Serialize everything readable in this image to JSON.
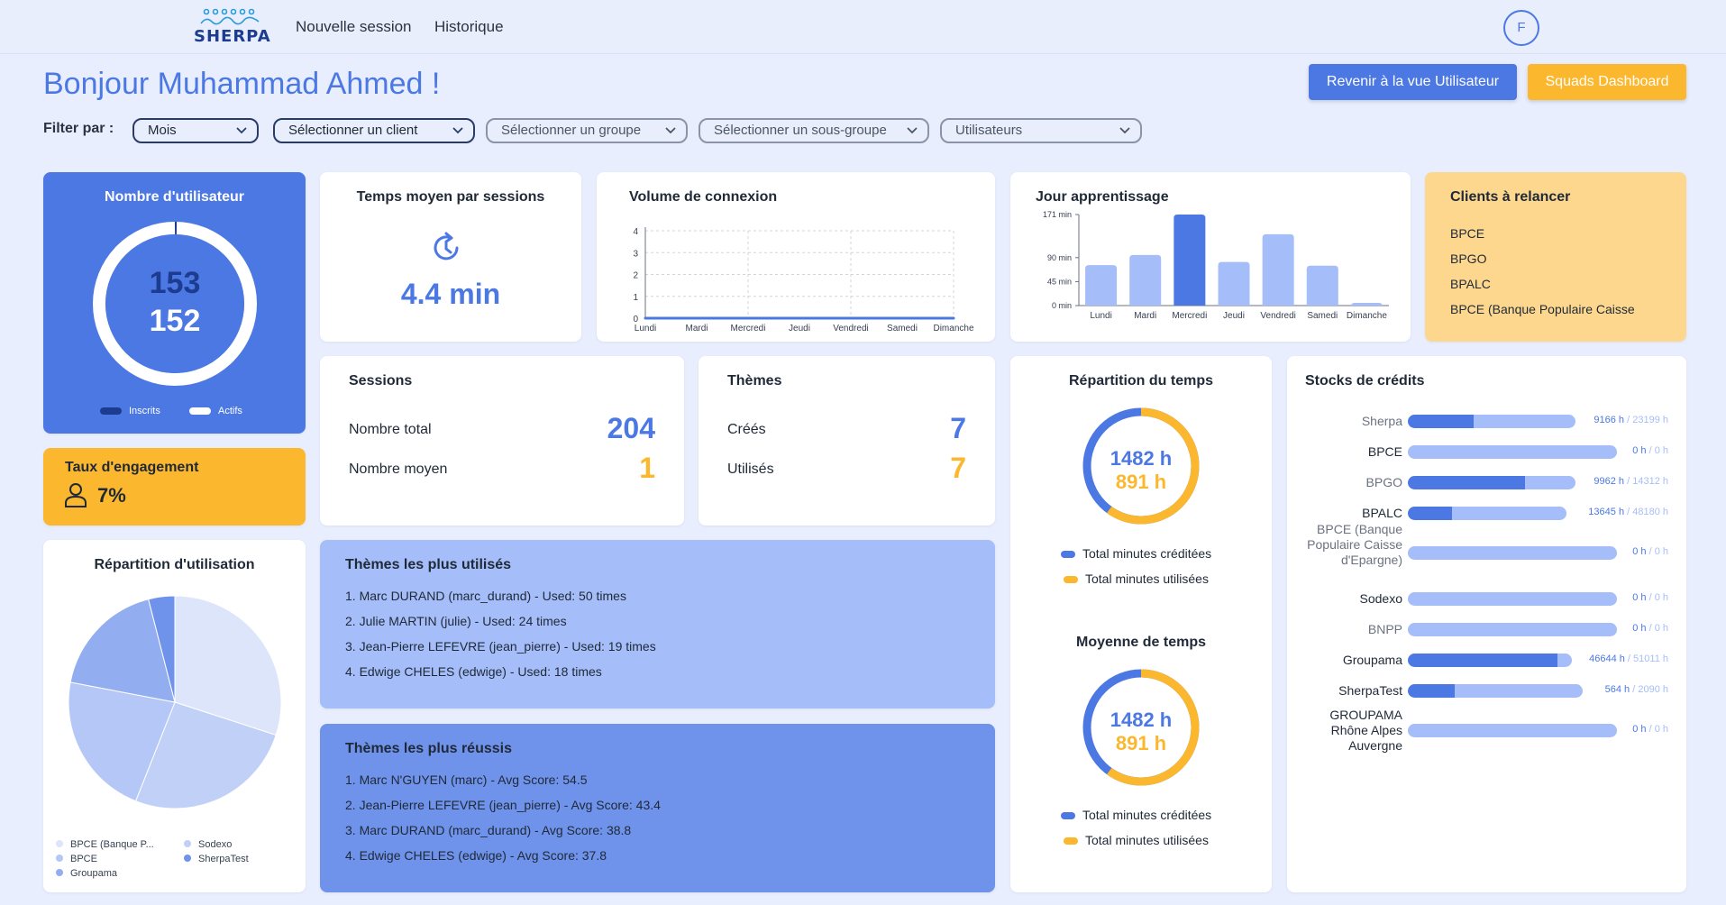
{
  "app": {
    "logo_text": "SHERPA"
  },
  "nav": {
    "new_session": "Nouvelle session",
    "history": "Historique",
    "avatar_initial": "F"
  },
  "header": {
    "greeting": "Bonjour Muhammad Ahmed !",
    "btn_user_view": "Revenir à la vue Utilisateur",
    "btn_squads": "Squads Dashboard"
  },
  "filters": {
    "label": "Filter par :",
    "month": "Mois",
    "client": "Sélectionner un client",
    "group": "Sélectionner un groupe",
    "subgroup": "Sélectionner un sous-groupe",
    "users": "Utilisateurs"
  },
  "users_card": {
    "title": "Nombre d'utilisateur",
    "registered": "153",
    "active": "152",
    "legend_registered": "Inscrits",
    "legend_active": "Actifs"
  },
  "engagement": {
    "title": "Taux d'engagement",
    "value": "7%"
  },
  "avg_time": {
    "title": "Temps moyen par sessions",
    "value": "4.4 min"
  },
  "sessions": {
    "title": "Sessions",
    "total_label": "Nombre total",
    "total": "204",
    "avg_label": "Nombre moyen",
    "avg": "1"
  },
  "themes": {
    "title": "Thèmes",
    "created_label": "Créés",
    "created": "7",
    "used_label": "Utilisés",
    "used": "7"
  },
  "connection_volume": {
    "title": "Volume de connexion",
    "chart_data": {
      "type": "line",
      "categories": [
        "Lundi",
        "Mardi",
        "Mercredi",
        "Jeudi",
        "Vendredi",
        "Samedi",
        "Dimanche"
      ],
      "values": [
        0,
        0,
        0,
        0,
        0,
        0,
        0
      ],
      "yticks": [
        "0",
        "1",
        "2",
        "3",
        "4"
      ],
      "ylim": [
        0,
        4
      ]
    }
  },
  "learning_day": {
    "title": "Jour apprentissage",
    "chart_data": {
      "type": "bar",
      "categories": [
        "Lundi",
        "Mardi",
        "Mercredi",
        "Jeudi",
        "Vendredi",
        "Samedi",
        "Dimanche"
      ],
      "values": [
        76,
        95,
        171,
        82,
        134,
        75,
        5
      ],
      "highlight": "Mercredi",
      "yticks": [
        "0 min",
        "45 min",
        "90 min",
        "171 min"
      ],
      "ytick_values": [
        0,
        45,
        90,
        171
      ],
      "ylim": [
        0,
        171
      ]
    }
  },
  "clients_to_follow": {
    "title": "Clients à relancer",
    "items": [
      "BPCE",
      "BPGO",
      "BPALC",
      "BPCE (Banque Populaire Caisse"
    ]
  },
  "usage_split": {
    "title": "Répartition d'utilisation",
    "chart_data": {
      "type": "pie",
      "slices": [
        {
          "label": "BPCE (Banque P...",
          "value": 30,
          "color": "#dde5fb"
        },
        {
          "label": "Sodexo",
          "value": 26,
          "color": "#c1d0f7"
        },
        {
          "label": "BPCE",
          "value": 22,
          "color": "#b5c7f6"
        },
        {
          "label": "Groupama",
          "value": 18,
          "color": "#93aef0"
        },
        {
          "label": "SherpaTest",
          "value": 4,
          "color": "#6f92ea"
        }
      ],
      "legend": [
        "BPCE (Banque P...",
        "Sodexo",
        "BPCE",
        "SherpaTest",
        "Groupama"
      ]
    }
  },
  "top_used": {
    "title": "Thèmes les plus utilisés",
    "items": [
      "1.  Marc DURAND (marc_durand) - Used: 50 times",
      "2.  Julie MARTIN (julie) - Used: 24 times",
      "3.  Jean-Pierre LEFEVRE (jean_pierre) - Used: 19 times",
      "4.  Edwige CHELES (edwige) - Used: 18 times"
    ]
  },
  "top_success": {
    "title": "Thèmes les plus réussis",
    "items": [
      "1.  Marc N'GUYEN (marc) - Avg Score: 54.5",
      "2.  Jean-Pierre LEFEVRE (jean_pierre) - Avg Score: 43.4",
      "3.  Marc DURAND (marc_durand) - Avg Score: 38.8",
      "4.  Edwige CHELES (edwige) - Avg Score: 37.8"
    ]
  },
  "time_split": {
    "title": "Répartition du temps",
    "credited": "1482 h",
    "used": "891 h",
    "used_fraction": 0.6,
    "legend_credited": "Total minutes créditées",
    "legend_used": "Total minutes utilisées"
  },
  "time_avg": {
    "title": "Moyenne de temps",
    "credited": "1482 h",
    "used": "891 h",
    "used_fraction": 0.6,
    "legend_credited": "Total minutes créditées",
    "legend_used": "Total minutes utilisées"
  },
  "credits": {
    "title": "Stocks de crédits",
    "rows": [
      {
        "name": "Sherpa",
        "used": "9166 h",
        "total": "23199 h",
        "fraction": 0.395,
        "dim": true
      },
      {
        "name": "BPCE",
        "used": "0 h",
        "total": "0 h",
        "fraction": 0,
        "dim": false
      },
      {
        "name": "BPGO",
        "used": "9962 h",
        "total": "14312 h",
        "fraction": 0.7,
        "dim": true
      },
      {
        "name": "BPALC",
        "used": "13645 h",
        "total": "48180 h",
        "fraction": 0.28,
        "dim": false
      },
      {
        "name": "BPCE (Banque Populaire Caisse d'Epargne)",
        "used": "0 h",
        "total": "0 h",
        "fraction": 0,
        "dim": true
      },
      {
        "name": "Sodexo",
        "used": "0 h",
        "total": "0 h",
        "fraction": 0,
        "dim": false
      },
      {
        "name": "BNPP",
        "used": "0 h",
        "total": "0 h",
        "fraction": 0,
        "dim": true
      },
      {
        "name": "Groupama",
        "used": "46644 h",
        "total": "51011 h",
        "fraction": 0.914,
        "dim": false
      },
      {
        "name": "SherpaTest",
        "used": "564 h",
        "total": "2090 h",
        "fraction": 0.27,
        "dim": false
      },
      {
        "name": "GROUPAMA Rhône Alpes Auvergne",
        "used": "0 h",
        "total": "0 h",
        "fraction": 0,
        "dim": false
      }
    ]
  }
}
